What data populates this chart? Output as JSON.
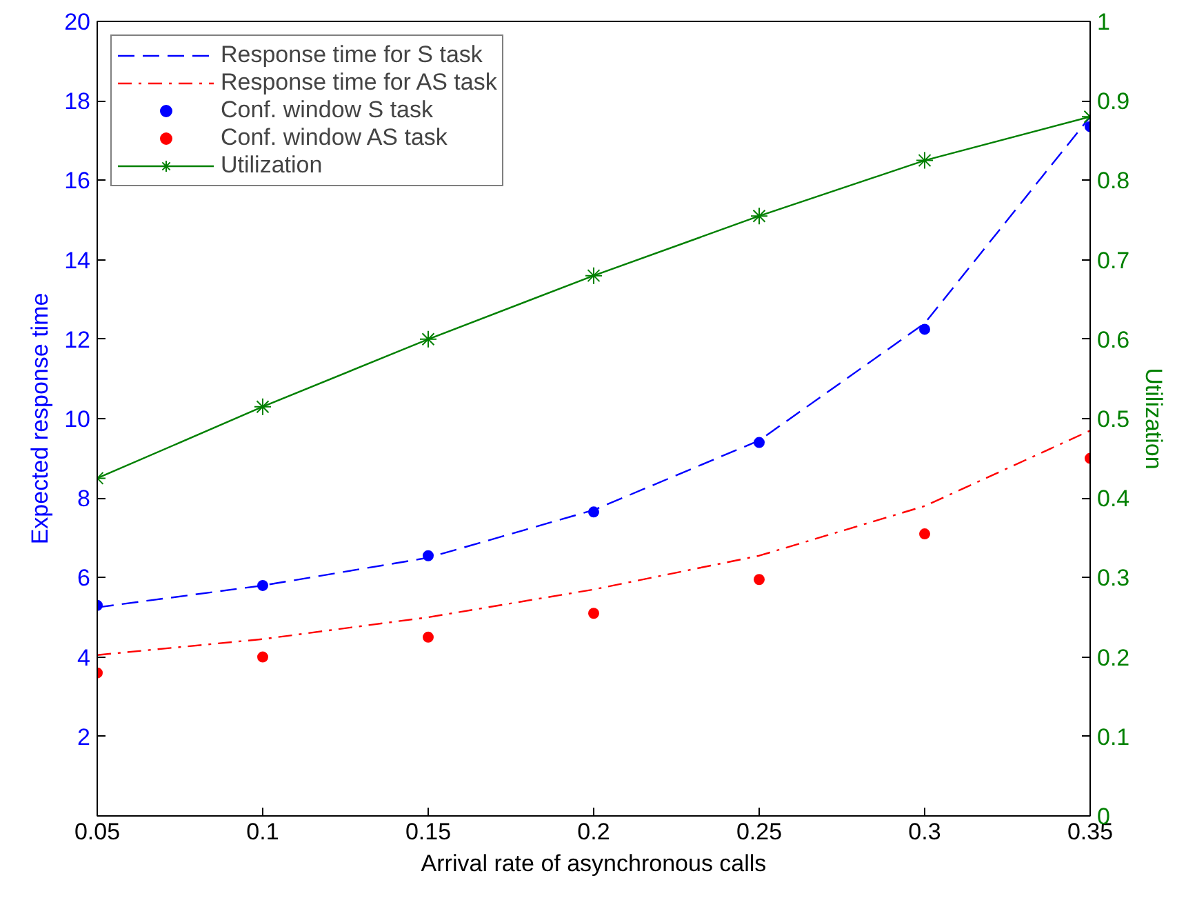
{
  "chart_data": {
    "type": "line",
    "xlabel": "Arrival rate of asynchronous calls",
    "ylabel": "Expected response time",
    "y2label": "Utilization",
    "x": [
      0.05,
      0.1,
      0.15,
      0.2,
      0.25,
      0.3,
      0.35
    ],
    "series": [
      {
        "name": "Response time for S task",
        "color": "#0000ff",
        "line_style": "dashed",
        "marker": "none",
        "values": [
          5.25,
          5.8,
          6.5,
          7.7,
          9.45,
          12.4,
          17.6
        ]
      },
      {
        "name": "Response time for AS task",
        "color": "#ff0000",
        "line_style": "dashdot",
        "marker": "none",
        "values": [
          4.05,
          4.45,
          5.0,
          5.7,
          6.55,
          7.8,
          9.7
        ]
      },
      {
        "name": "Conf. window S task",
        "type": "scatter",
        "color": "#0000ff",
        "marker": "circle",
        "values": [
          5.3,
          5.8,
          6.55,
          7.65,
          9.4,
          12.25,
          17.35
        ]
      },
      {
        "name": "Conf. window AS task",
        "type": "scatter",
        "color": "#ff0000",
        "marker": "circle",
        "values": [
          3.6,
          4.0,
          4.5,
          5.1,
          5.95,
          7.1,
          9.0
        ]
      },
      {
        "name": "Utilization",
        "axis": "y2",
        "color": "#008000",
        "line_style": "solid",
        "marker": "cross",
        "values": [
          0.425,
          0.515,
          0.6,
          0.68,
          0.755,
          0.825,
          0.88
        ]
      }
    ],
    "xlim": [
      0.05,
      0.35
    ],
    "xticks": [
      0.05,
      0.1,
      0.15,
      0.2,
      0.25,
      0.3,
      0.35
    ],
    "ylim": [
      0,
      20
    ],
    "yticks": [
      2,
      4,
      6,
      8,
      10,
      12,
      14,
      16,
      18,
      20
    ],
    "y2lim": [
      0,
      1
    ],
    "y2ticks": [
      0,
      0.1,
      0.2,
      0.3,
      0.4,
      0.5,
      0.6,
      0.7,
      0.8,
      0.9,
      1
    ],
    "grid": false,
    "legend": "top left"
  }
}
